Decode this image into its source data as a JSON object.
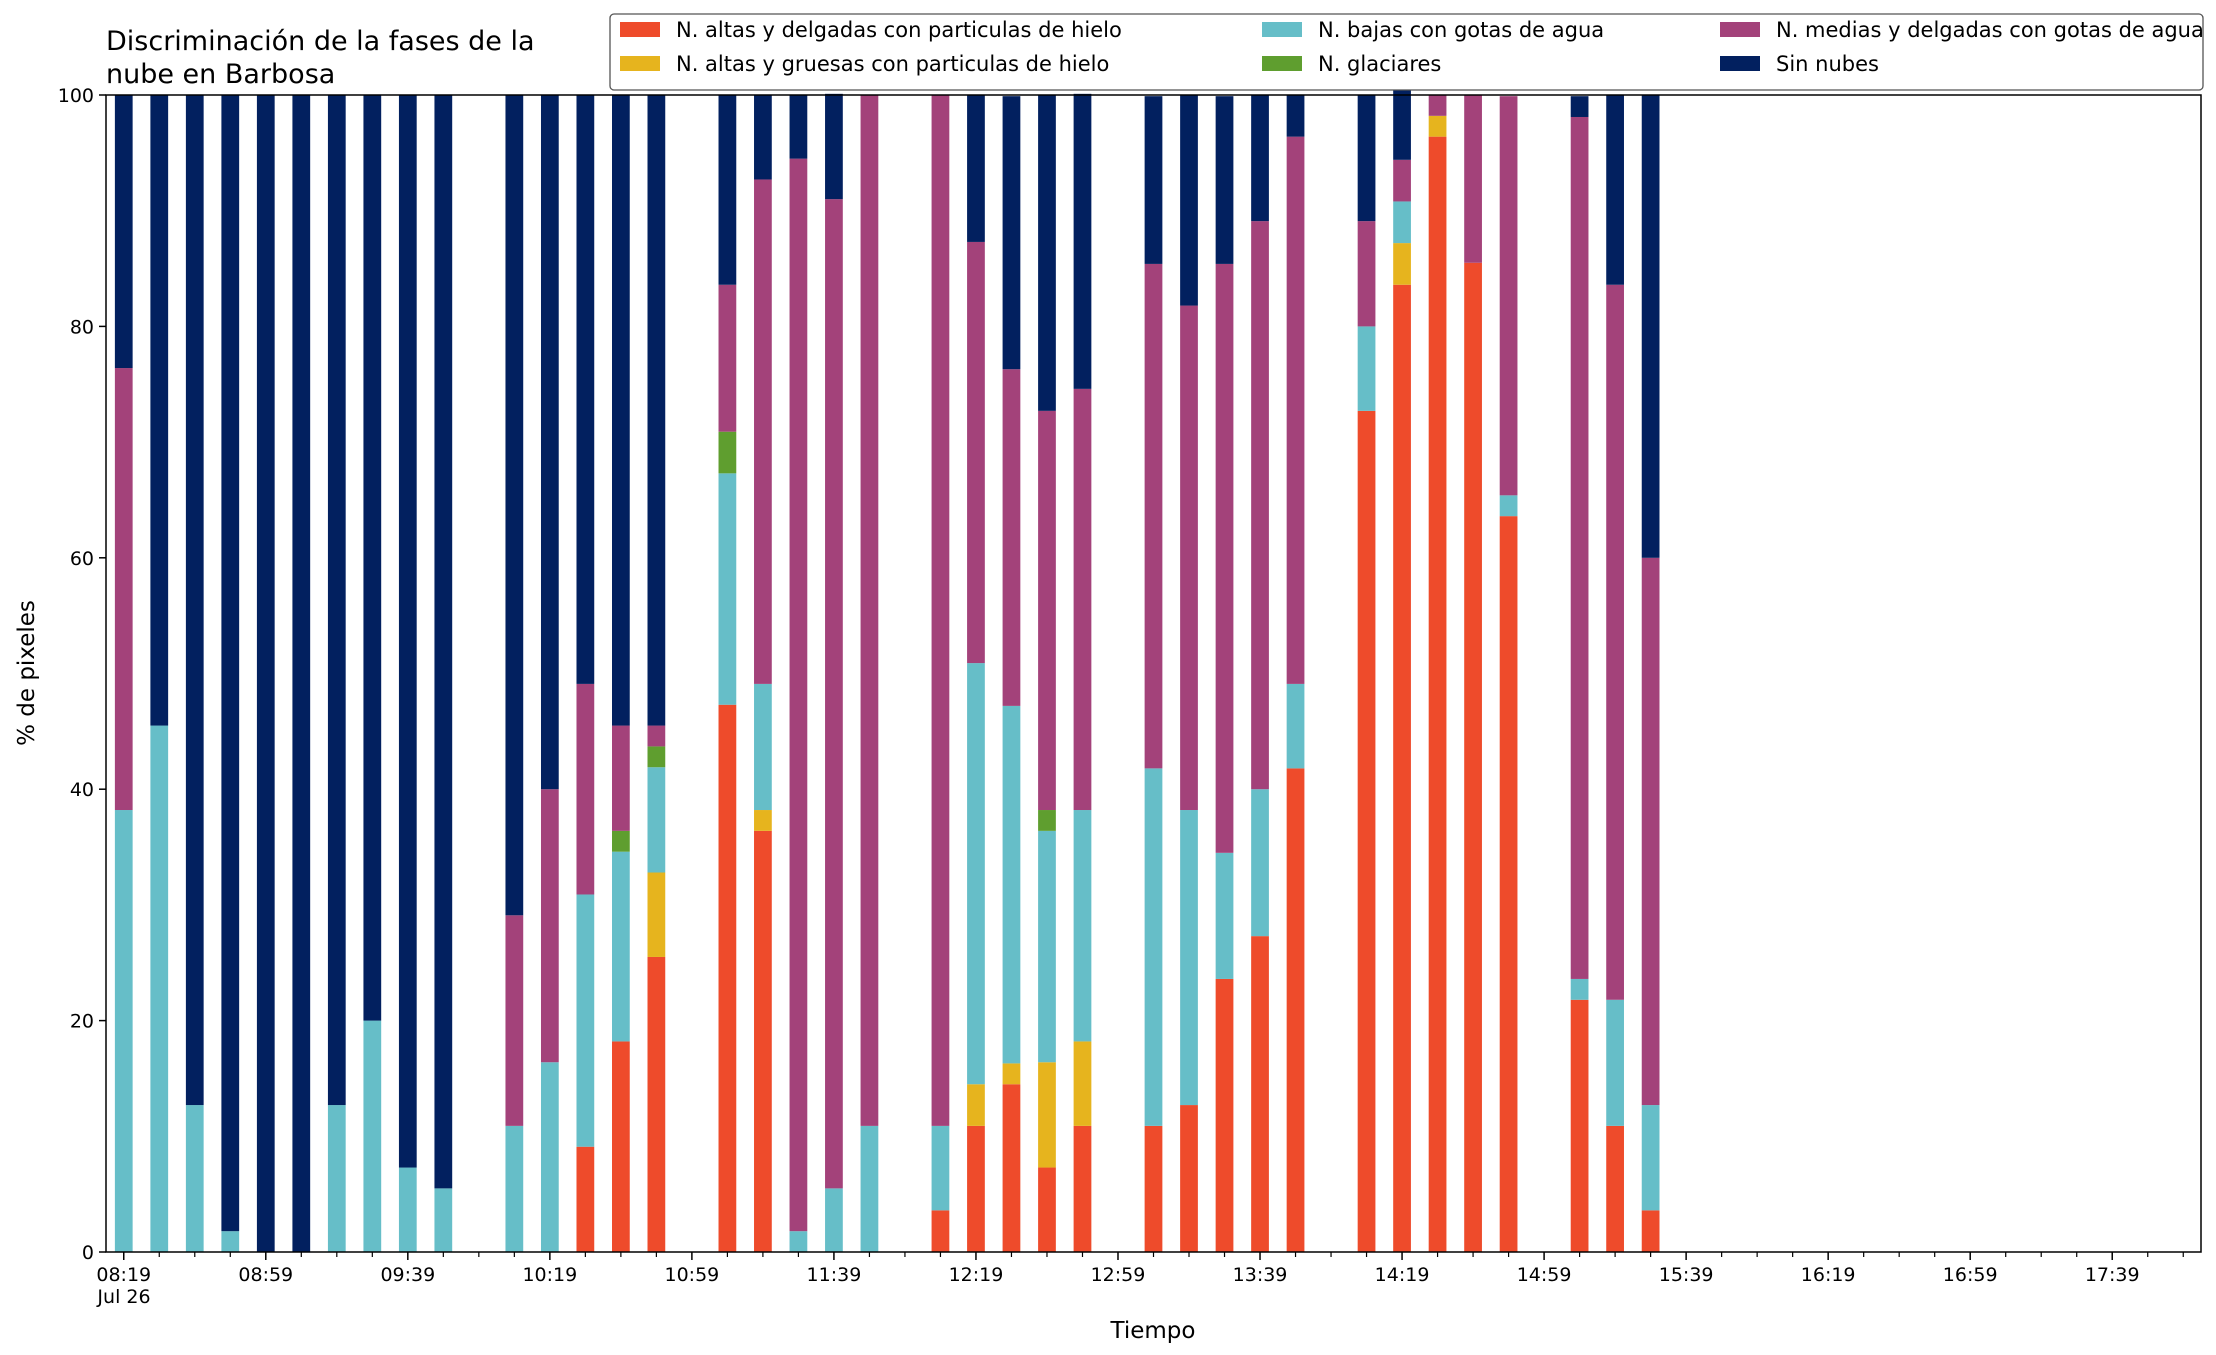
{
  "chart_data": {
    "type": "bar",
    "stacked": true,
    "title": "Discriminación de la fases de la nube en Barbosa",
    "title_lines": [
      "Discriminación de la fases de la",
      "nube en Barbosa"
    ],
    "xlabel": "Tiempo",
    "ylabel": "% de pixeles",
    "ylim": [
      0,
      100
    ],
    "yticks": [
      "0",
      "20",
      "40",
      "60",
      "80",
      "100"
    ],
    "xlim": [
      "08:14",
      "18:04"
    ],
    "bar_interval_minutes": 10,
    "xtick_labels": [
      "08:19",
      "08:59",
      "09:39",
      "10:19",
      "10:59",
      "11:39",
      "12:19",
      "12:59",
      "13:39",
      "14:19",
      "14:59",
      "15:39",
      "16:19",
      "16:59",
      "17:39"
    ],
    "xtick_date": "Jul 26",
    "legend_position": "top-right",
    "grid": false,
    "series": [
      {
        "name": "N. altas y delgadas con particulas de hielo",
        "color": "#ee4b2b",
        "values": [
          0,
          0,
          0,
          0,
          0,
          0,
          0,
          0,
          0,
          0,
          null,
          0,
          0,
          9.1,
          18.2,
          25.5,
          null,
          47.3,
          36.4,
          0,
          0,
          0,
          null,
          3.6,
          10.9,
          14.5,
          7.3,
          10.9,
          null,
          10.9,
          12.7,
          23.6,
          27.3,
          41.8,
          null,
          72.7,
          83.6,
          96.4,
          85.5,
          63.6,
          null,
          21.8,
          10.9,
          3.6
        ]
      },
      {
        "name": "N. altas y gruesas con particulas de hielo",
        "color": "#e6b41e",
        "values": [
          0,
          0,
          0,
          0,
          0,
          0,
          0,
          0,
          0,
          0,
          null,
          0,
          0,
          0,
          0,
          7.3,
          null,
          0,
          1.8,
          0,
          0,
          0,
          null,
          0,
          3.6,
          1.8,
          9.1,
          7.3,
          null,
          0,
          0,
          0,
          0,
          0,
          null,
          0,
          3.6,
          1.8,
          0,
          0,
          null,
          0,
          0,
          0
        ]
      },
      {
        "name": "N. bajas con gotas de agua",
        "color": "#66bec8",
        "values": [
          38.2,
          45.5,
          12.7,
          1.8,
          0,
          0,
          12.7,
          20,
          7.3,
          5.5,
          null,
          10.9,
          16.4,
          21.8,
          16.4,
          9.1,
          null,
          20,
          10.9,
          1.8,
          5.5,
          10.9,
          null,
          7.3,
          36.4,
          30.9,
          20,
          20,
          null,
          30.9,
          25.5,
          10.9,
          12.7,
          7.3,
          null,
          7.3,
          3.6,
          0,
          0,
          1.8,
          null,
          1.8,
          10.9,
          9.1
        ]
      },
      {
        "name": "N. glaciares",
        "color": "#5f9e2f",
        "values": [
          0,
          0,
          0,
          0,
          0,
          0,
          0,
          0,
          0,
          0,
          null,
          0,
          0,
          0,
          1.8,
          1.8,
          null,
          3.6,
          0,
          0,
          0,
          0,
          null,
          0,
          0,
          0,
          1.8,
          0,
          null,
          0,
          0,
          0,
          0,
          0,
          null,
          0,
          0,
          0,
          0,
          0,
          null,
          0,
          0,
          0
        ]
      },
      {
        "name": "N. medias y delgadas con gotas de agua",
        "color": "#a3427a",
        "values": [
          38.2,
          0,
          0,
          0,
          0,
          0,
          0,
          0,
          0,
          0,
          null,
          18.2,
          23.6,
          18.2,
          9.1,
          1.8,
          null,
          12.7,
          43.6,
          92.7,
          85.5,
          89.1,
          null,
          89.1,
          36.4,
          29.1,
          34.5,
          36.4,
          null,
          43.6,
          43.6,
          50.9,
          49.1,
          47.3,
          null,
          9.1,
          3.6,
          1.8,
          14.5,
          34.5,
          null,
          74.5,
          61.8,
          47.3
        ]
      },
      {
        "name": "Sin nubes",
        "color": "#02205f",
        "values": [
          23.6,
          54.5,
          87.3,
          98.2,
          100,
          100,
          87.3,
          80,
          92.7,
          94.5,
          null,
          70.9,
          60,
          50.9,
          54.5,
          54.5,
          null,
          16.4,
          7.3,
          5.5,
          9.1,
          0,
          null,
          0,
          12.7,
          23.6,
          27.3,
          25.5,
          null,
          14.5,
          18.2,
          14.5,
          10.9,
          3.6,
          null,
          10.9,
          9.1,
          0,
          0,
          0,
          null,
          1.8,
          16.4,
          40
        ]
      }
    ]
  }
}
